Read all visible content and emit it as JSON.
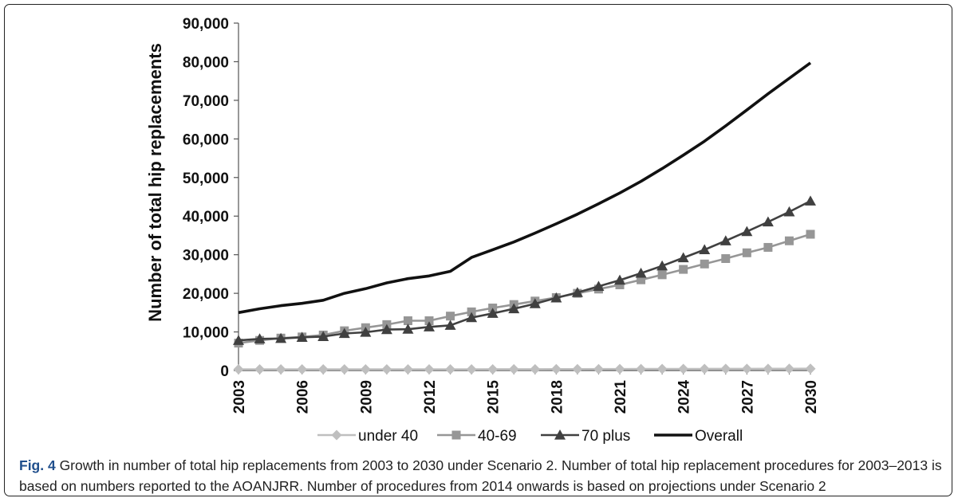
{
  "caption": {
    "label": "Fig. 4",
    "text": " Growth in number of total hip replacements from 2003 to 2030 under Scenario 2. Number of total hip replacement procedures for 2003–2013 is based on numbers reported to the AOANJRR. Number of procedures from 2014 onwards is based on projections under Scenario 2"
  },
  "chart_data": {
    "type": "line",
    "ylabel": "Number of total hip replacements",
    "xlabel": "",
    "ylim": [
      0,
      90000
    ],
    "yticks": [
      0,
      10000,
      20000,
      30000,
      40000,
      50000,
      60000,
      70000,
      80000,
      90000
    ],
    "ytick_labels": [
      "0",
      "10,000",
      "20,000",
      "30,000",
      "40,000",
      "50,000",
      "60,000",
      "70,000",
      "80,000",
      "90,000"
    ],
    "xlim": [
      2003,
      2030
    ],
    "xticks": [
      "2003",
      "2006",
      "2009",
      "2012",
      "2015",
      "2018",
      "2021",
      "2024",
      "2027",
      "2030"
    ],
    "x": [
      2003,
      2004,
      2005,
      2006,
      2007,
      2008,
      2009,
      2010,
      2011,
      2012,
      2013,
      2014,
      2015,
      2016,
      2017,
      2018,
      2019,
      2020,
      2021,
      2022,
      2023,
      2024,
      2025,
      2026,
      2027,
      2028,
      2029,
      2030
    ],
    "grid": false,
    "legend_position": "bottom",
    "series": [
      {
        "name": "under 40",
        "color": "#bfbfbf",
        "marker": "diamond",
        "values": [
          300,
          300,
          300,
          300,
          300,
          300,
          300,
          300,
          300,
          300,
          300,
          310,
          320,
          330,
          340,
          350,
          360,
          370,
          380,
          390,
          400,
          410,
          420,
          430,
          440,
          450,
          460,
          470
        ]
      },
      {
        "name": "40-69",
        "color": "#969696",
        "marker": "square",
        "values": [
          7100,
          7800,
          8400,
          8700,
          9200,
          10300,
          11100,
          11900,
          12900,
          12900,
          14100,
          15200,
          16200,
          17100,
          18000,
          18900,
          20000,
          21100,
          22200,
          23500,
          24800,
          26200,
          27600,
          29000,
          30500,
          31900,
          33600,
          35300
        ]
      },
      {
        "name": "70 plus",
        "color": "#404040",
        "marker": "triangle",
        "values": [
          7800,
          8200,
          8300,
          8600,
          8800,
          9600,
          9900,
          10600,
          10700,
          11300,
          11700,
          13700,
          14800,
          16000,
          17300,
          18800,
          20200,
          21800,
          23400,
          25200,
          27100,
          29200,
          31300,
          33600,
          36000,
          38500,
          41100,
          43900
        ]
      },
      {
        "name": "Overall",
        "color": "#111111",
        "marker": "none",
        "values": [
          15000,
          16000,
          16800,
          17400,
          18200,
          20000,
          21200,
          22700,
          23800,
          24500,
          25700,
          29300,
          31300,
          33300,
          35600,
          38000,
          40500,
          43200,
          46000,
          49000,
          52300,
          55800,
          59400,
          63400,
          67500,
          71700,
          75700,
          79700
        ]
      }
    ]
  }
}
